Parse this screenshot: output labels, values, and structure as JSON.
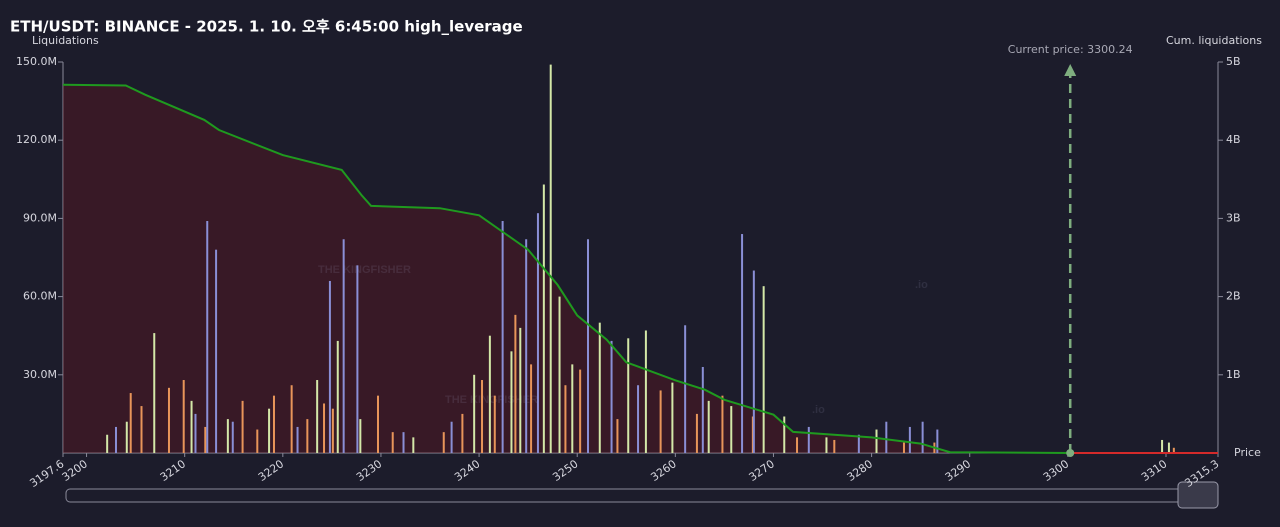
{
  "chart_data": {
    "type": "bar",
    "title": "ETH/USDT: BINANCE - 2025. 1. 10. 오후 6:45:00 high_leverage",
    "y_label": "Liquidations",
    "y2_label": "Cum. liquidations",
    "x_label": "Price",
    "watermark": "THE KINGFISHER",
    "watermark_suffix": ".io",
    "current_price": {
      "value": 3300.24,
      "label": "Current price: 3300.24"
    },
    "xlim": [
      3197.6,
      3315.3
    ],
    "xticks": [
      3197.6,
      3200,
      3210,
      3220,
      3230,
      3240,
      3250,
      3260,
      3270,
      3280,
      3290,
      3300,
      3310,
      3315.3
    ],
    "ylim": [
      0,
      150
    ],
    "yticks": [
      {
        "value": 30,
        "label": "30.0M"
      },
      {
        "value": 60,
        "label": "60.0M"
      },
      {
        "value": 90,
        "label": "90.0M"
      },
      {
        "value": 120,
        "label": "120.0M"
      },
      {
        "value": 150,
        "label": "150.0M"
      }
    ],
    "y2lim": [
      0,
      5
    ],
    "y2ticks": [
      {
        "value": 1,
        "label": "1B"
      },
      {
        "value": 2,
        "label": "2B"
      },
      {
        "value": 3,
        "label": "3B"
      },
      {
        "value": 4,
        "label": "4B"
      },
      {
        "value": 5,
        "label": "5B"
      }
    ],
    "series": [
      {
        "color": "#e8955a",
        "x": [
          3204.5,
          3205.6,
          3208.4,
          3209.9,
          3212.1,
          3215.9,
          3217.4,
          3219.1,
          3220.9,
          3222.5,
          3224.2,
          3225.1,
          3229.7,
          3231.2,
          3236.4,
          3238.3,
          3240.3,
          3241.6,
          3243.7,
          3245.3,
          3248.8,
          3250.3,
          3254.1,
          3258.5,
          3262.2,
          3264.8,
          3267.9,
          3272.4,
          3276.2,
          3283.3,
          3286.4,
          3310.8
        ],
        "values": [
          23,
          18,
          25,
          28,
          10,
          20,
          9,
          22,
          26,
          13,
          19,
          17,
          22,
          8,
          8,
          15,
          28,
          22,
          53,
          34,
          26,
          32,
          13,
          24,
          15,
          22,
          14,
          6,
          5,
          4,
          4,
          2
        ]
      },
      {
        "color": "#d4e8a8",
        "x": [
          3202.1,
          3204.1,
          3206.9,
          3210.7,
          3214.4,
          3218.6,
          3223.5,
          3225.6,
          3227.9,
          3233.3,
          3239.5,
          3241.1,
          3243.3,
          3244.2,
          3246.6,
          3247.3,
          3248.2,
          3249.5,
          3252.3,
          3255.2,
          3257.0,
          3259.7,
          3263.4,
          3265.7,
          3269.0,
          3271.1,
          3275.4,
          3280.5,
          3309.6,
          3310.3
        ],
        "values": [
          7,
          12,
          46,
          20,
          13,
          17,
          28,
          43,
          13,
          6,
          30,
          45,
          39,
          48,
          103,
          149,
          60,
          34,
          50,
          44,
          47,
          27,
          20,
          18,
          64,
          14,
          6,
          9,
          5,
          4
        ]
      },
      {
        "color": "#8a8fd6",
        "x": [
          3203.0,
          3211.1,
          3212.3,
          3213.2,
          3214.9,
          3221.5,
          3224.8,
          3226.2,
          3227.6,
          3232.3,
          3237.2,
          3242.4,
          3244.8,
          3246.0,
          3251.1,
          3253.5,
          3256.2,
          3261.0,
          3262.8,
          3266.8,
          3268.0,
          3273.6,
          3278.7,
          3281.5,
          3283.9,
          3285.2,
          3286.7
        ],
        "values": [
          10,
          15,
          89,
          78,
          12,
          10,
          66,
          82,
          72,
          8,
          12,
          89,
          82,
          92,
          82,
          43,
          26,
          49,
          33,
          84,
          70,
          10,
          7,
          12,
          10,
          12,
          9
        ]
      }
    ],
    "cumulative": {
      "color": "#1f9a1f",
      "x": [
        3197.6,
        3204,
        3206,
        3212,
        3213.5,
        3220,
        3226,
        3228,
        3229,
        3236,
        3240,
        3245,
        3248,
        3250,
        3253,
        3255,
        3260,
        3263,
        3265,
        3270,
        3272,
        3280,
        3285,
        3288,
        3300.24
      ],
      "values": [
        4.71,
        4.7,
        4.58,
        4.26,
        4.13,
        3.81,
        3.62,
        3.3,
        3.16,
        3.13,
        3.04,
        2.6,
        2.15,
        1.76,
        1.45,
        1.16,
        0.93,
        0.81,
        0.68,
        0.49,
        0.27,
        0.2,
        0.12,
        0.01,
        0
      ]
    },
    "cumulative_short": {
      "color": "#d42a2a",
      "x": [
        3300.24,
        3315.3
      ],
      "values": [
        0,
        0
      ]
    }
  }
}
